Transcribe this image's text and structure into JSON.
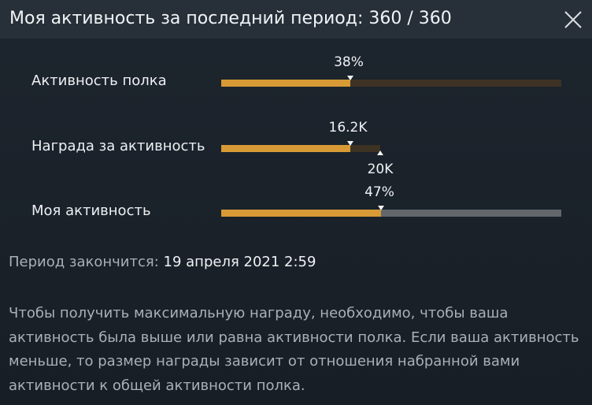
{
  "header": {
    "title": "Моя активность за последний период: 360 / 360",
    "close_icon": "close-icon"
  },
  "rows": [
    {
      "label": "Активность полка",
      "marker_value": "38%",
      "progress": 0.38,
      "rest_color": "#3d3224"
    },
    {
      "label": "Награда за активность",
      "marker_value": "16.2K",
      "max_value": "20K",
      "progress": 0.81,
      "rest_color": "#3d3224"
    },
    {
      "label": "Моя активность",
      "marker_value": "47%",
      "progress": 0.47,
      "rest_color": "#63666a"
    }
  ],
  "period": {
    "label": "Период закончится:",
    "date": "19 апреля 2021 2:59"
  },
  "description": "Чтобы получить максимальную награду, необходимо, чтобы ваша активность была выше или равна активности полка. Если ваша активность меньше, то размер награды зависит от отношения набранной вами активности к общей активности полка.",
  "colors": {
    "accent": "#d79a35",
    "background": "#1b222a",
    "header": "#273039"
  }
}
